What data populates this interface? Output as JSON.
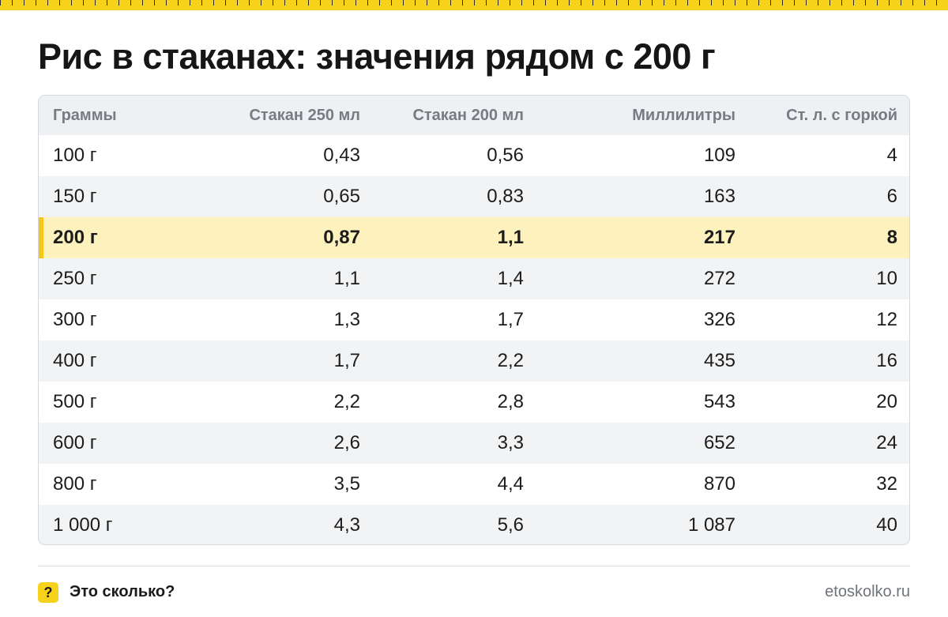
{
  "title": "Рис в стаканах: значения рядом с 200 г",
  "table": {
    "headers": [
      "Граммы",
      "Стакан 250 мл",
      "Стакан 200 мл",
      "Миллилитры",
      "Ст. л. с горкой"
    ],
    "highlight_row_index": 2,
    "rows": [
      [
        "100 г",
        "0,43",
        "0,56",
        "109",
        "4"
      ],
      [
        "150 г",
        "0,65",
        "0,83",
        "163",
        "6"
      ],
      [
        "200 г",
        "0,87",
        "1,1",
        "217",
        "8"
      ],
      [
        "250 г",
        "1,1",
        "1,4",
        "272",
        "10"
      ],
      [
        "300 г",
        "1,3",
        "1,7",
        "326",
        "12"
      ],
      [
        "400 г",
        "1,7",
        "2,2",
        "435",
        "16"
      ],
      [
        "500 г",
        "2,2",
        "2,8",
        "543",
        "20"
      ],
      [
        "600 г",
        "2,6",
        "3,3",
        "652",
        "24"
      ],
      [
        "800 г",
        "3,5",
        "4,4",
        "870",
        "32"
      ],
      [
        "1 000 г",
        "4,3",
        "5,6",
        "1 087",
        "40"
      ]
    ]
  },
  "footer": {
    "badge_glyph": "?",
    "brand": "Это сколько?",
    "site": "etoskolko.ru"
  },
  "colors": {
    "accent_yellow": "#f7d21a",
    "highlight_bg": "#fdf1bd",
    "highlight_bar": "#f5c518",
    "header_bg": "#eef0f3",
    "zebra_bg": "#f2f3f5"
  }
}
